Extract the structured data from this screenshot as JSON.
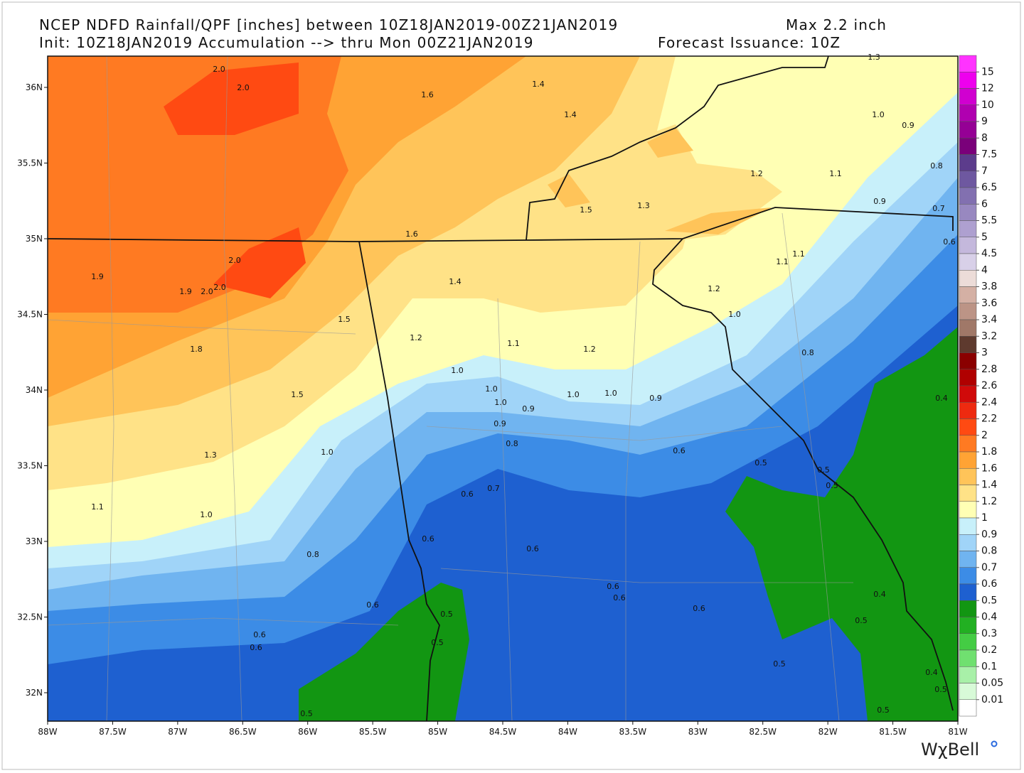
{
  "header": {
    "title": "NCEP NDFD Rainfall/QPF [inches] between 10Z18JAN2019-00Z21JAN2019",
    "max": "Max 2.2 inch",
    "init": "Init: 10Z18JAN2019 Accumulation --> thru Mon 00Z21JAN2019",
    "issuance": "Forecast Issuance: 10Z"
  },
  "map": {
    "lat_ticks": [
      {
        "value": 36,
        "label": "36N"
      },
      {
        "value": 35.5,
        "label": "35.5N"
      },
      {
        "value": 35,
        "label": "35N"
      },
      {
        "value": 34.5,
        "label": "34.5N"
      },
      {
        "value": 34,
        "label": "34N"
      },
      {
        "value": 33.5,
        "label": "33.5N"
      },
      {
        "value": 33,
        "label": "33N"
      },
      {
        "value": 32.5,
        "label": "32.5N"
      },
      {
        "value": 32,
        "label": "32N"
      }
    ],
    "lon_ticks": [
      {
        "value": -88,
        "label": "88W"
      },
      {
        "value": -87.5,
        "label": "87.5W"
      },
      {
        "value": -87,
        "label": "87W"
      },
      {
        "value": -86.5,
        "label": "86.5W"
      },
      {
        "value": -86,
        "label": "86W"
      },
      {
        "value": -85.5,
        "label": "85.5W"
      },
      {
        "value": -85,
        "label": "85W"
      },
      {
        "value": -84.5,
        "label": "84.5W"
      },
      {
        "value": -84,
        "label": "84W"
      },
      {
        "value": -83.5,
        "label": "83.5W"
      },
      {
        "value": -83,
        "label": "83W"
      },
      {
        "value": -82.5,
        "label": "82.5W"
      },
      {
        "value": -82,
        "label": "82W"
      },
      {
        "value": -81.5,
        "label": "81.5W"
      },
      {
        "value": -81,
        "label": "81W"
      }
    ],
    "contour_labels": [
      "2.0",
      "2.0",
      "1.6",
      "1.4",
      "1.4",
      "1.3",
      "1.0",
      "0.9",
      "0.8",
      "1.2",
      "1.1",
      "0.9",
      "0.7",
      "0.6",
      "1.5",
      "1.3",
      "1.6",
      "2.0",
      "1.9",
      "1.9",
      "2.0",
      "2.0",
      "1.4",
      "1.1",
      "1.1",
      "1.2",
      "1.0",
      "1.5",
      "1.2",
      "1.1",
      "1.2",
      "1.8",
      "0.8",
      "1.0",
      "1.0",
      "1.0",
      "1.0",
      "0.9",
      "1.5",
      "1.0",
      "0.9",
      "0.4",
      "0.9",
      "0.8",
      "1.3",
      "1.0",
      "0.6",
      "0.5",
      "0.5",
      "0.5",
      "0.7",
      "0.6",
      "1.1",
      "1.0",
      "0.6",
      "0.6",
      "0.8",
      "0.6",
      "0.6",
      "0.4",
      "0.6",
      "0.5",
      "0.6",
      "0.5",
      "0.6",
      "0.6",
      "0.5",
      "0.5",
      "0.4",
      "0.5",
      "0.5",
      "0.5"
    ]
  },
  "colorbar": {
    "levels": [
      15,
      12,
      10,
      9,
      8,
      7.5,
      7,
      6.5,
      6,
      5.5,
      5,
      4.5,
      4,
      3.8,
      3.6,
      3.4,
      3.2,
      3,
      2.8,
      2.6,
      2.4,
      2.2,
      2,
      1.8,
      1.6,
      1.4,
      1.2,
      1,
      0.9,
      0.8,
      0.7,
      0.6,
      0.5,
      0.4,
      0.3,
      0.2,
      0.1,
      0.05,
      0.01
    ],
    "colors": [
      "#ff33ff",
      "#ee00ee",
      "#d000d0",
      "#b000b0",
      "#950095",
      "#7a007a",
      "#5c3c8c",
      "#6e58a0",
      "#8270b0",
      "#9888c0",
      "#aea0d0",
      "#c4b8dc",
      "#d8d0e8",
      "#ecdcd8",
      "#d4b0a4",
      "#bc9486",
      "#a07868",
      "#5e3a2e",
      "#8a0000",
      "#b00000",
      "#d00a0a",
      "#ee2a10",
      "#ff4a12",
      "#ff7a22",
      "#ffa334",
      "#ffc459",
      "#ffe287",
      "#ffffb4",
      "#c8f0fa",
      "#a0d4f8",
      "#70b4f0",
      "#3c8ce6",
      "#1e60d0",
      "#129612",
      "#22b022",
      "#44cc44",
      "#70e070",
      "#a8f0a8",
      "#d8fad8",
      "#ffffff"
    ]
  },
  "logo": "WχBell"
}
